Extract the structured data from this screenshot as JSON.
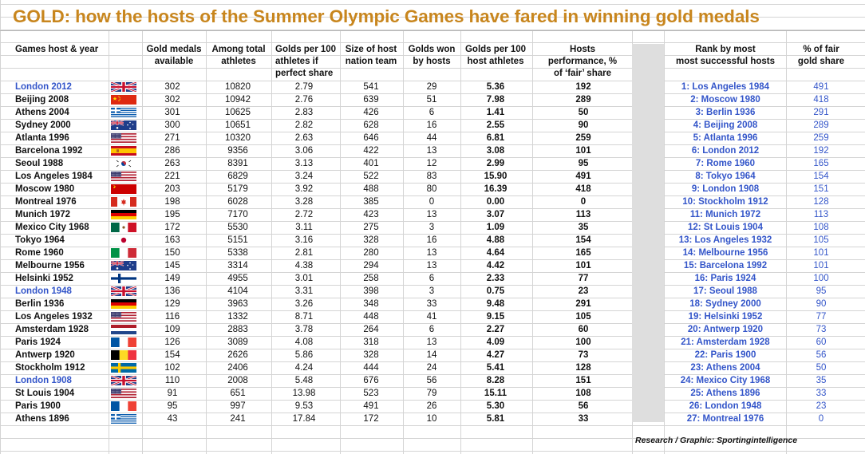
{
  "title": "GOLD: how the hosts of the Summer Olympic Games have fared in winning gold medals",
  "headers": {
    "host": [
      "Games host & year"
    ],
    "gold": [
      "Gold medals",
      "available"
    ],
    "athletes": [
      "Among total",
      "athletes"
    ],
    "fair": [
      "Golds per 100",
      "athletes if",
      "perfect share"
    ],
    "team": [
      "Size of host",
      "nation team"
    ],
    "won": [
      "Golds won",
      "by hosts"
    ],
    "per100": [
      "Golds per 100",
      "host athletes"
    ],
    "perf": [
      "Hosts",
      "performance, %",
      "of ‘fair’ share"
    ],
    "rank": [
      "Rank by most",
      "most successful hosts"
    ],
    "pct": [
      "% of fair",
      "gold share"
    ]
  },
  "rows": [
    {
      "host": "London 2012",
      "blue": true,
      "flag": "uk",
      "gold": "302",
      "athletes": "10820",
      "fair": "2.79",
      "team": "541",
      "won": "29",
      "per100": "5.36",
      "perf": "192"
    },
    {
      "host": "Beijing 2008",
      "blue": false,
      "flag": "china",
      "gold": "302",
      "athletes": "10942",
      "fair": "2.76",
      "team": "639",
      "won": "51",
      "per100": "7.98",
      "perf": "289"
    },
    {
      "host": "Athens 2004",
      "blue": false,
      "flag": "greece",
      "gold": "301",
      "athletes": "10625",
      "fair": "2.83",
      "team": "426",
      "won": "6",
      "per100": "1.41",
      "perf": "50"
    },
    {
      "host": "Sydney 2000",
      "blue": false,
      "flag": "australia",
      "gold": "300",
      "athletes": "10651",
      "fair": "2.82",
      "team": "628",
      "won": "16",
      "per100": "2.55",
      "perf": "90"
    },
    {
      "host": "Atlanta 1996",
      "blue": false,
      "flag": "usa",
      "gold": "271",
      "athletes": "10320",
      "fair": "2.63",
      "team": "646",
      "won": "44",
      "per100": "6.81",
      "perf": "259"
    },
    {
      "host": "Barcelona 1992",
      "blue": false,
      "flag": "spain",
      "gold": "286",
      "athletes": "9356",
      "fair": "3.06",
      "team": "422",
      "won": "13",
      "per100": "3.08",
      "perf": "101"
    },
    {
      "host": "Seoul 1988",
      "blue": false,
      "flag": "korea",
      "gold": "263",
      "athletes": "8391",
      "fair": "3.13",
      "team": "401",
      "won": "12",
      "per100": "2.99",
      "perf": "95"
    },
    {
      "host": "Los Angeles 1984",
      "blue": false,
      "flag": "usa",
      "gold": "221",
      "athletes": "6829",
      "fair": "3.24",
      "team": "522",
      "won": "83",
      "per100": "15.90",
      "perf": "491"
    },
    {
      "host": "Moscow 1980",
      "blue": false,
      "flag": "ussr",
      "gold": "203",
      "athletes": "5179",
      "fair": "3.92",
      "team": "488",
      "won": "80",
      "per100": "16.39",
      "perf": "418"
    },
    {
      "host": "Montreal 1976",
      "blue": false,
      "flag": "canada",
      "gold": "198",
      "athletes": "6028",
      "fair": "3.28",
      "team": "385",
      "won": "0",
      "per100": "0.00",
      "perf": "0"
    },
    {
      "host": "Munich 1972",
      "blue": false,
      "flag": "germany",
      "gold": "195",
      "athletes": "7170",
      "fair": "2.72",
      "team": "423",
      "won": "13",
      "per100": "3.07",
      "perf": "113"
    },
    {
      "host": "Mexico City 1968",
      "blue": false,
      "flag": "mexico",
      "gold": "172",
      "athletes": "5530",
      "fair": "3.11",
      "team": "275",
      "won": "3",
      "per100": "1.09",
      "perf": "35"
    },
    {
      "host": "Tokyo 1964",
      "blue": false,
      "flag": "japan",
      "gold": "163",
      "athletes": "5151",
      "fair": "3.16",
      "team": "328",
      "won": "16",
      "per100": "4.88",
      "perf": "154"
    },
    {
      "host": "Rome 1960",
      "blue": false,
      "flag": "italy",
      "gold": "150",
      "athletes": "5338",
      "fair": "2.81",
      "team": "280",
      "won": "13",
      "per100": "4.64",
      "perf": "165"
    },
    {
      "host": "Melbourne 1956",
      "blue": false,
      "flag": "australia",
      "gold": "145",
      "athletes": "3314",
      "fair": "4.38",
      "team": "294",
      "won": "13",
      "per100": "4.42",
      "perf": "101"
    },
    {
      "host": "Helsinki 1952",
      "blue": false,
      "flag": "finland",
      "gold": "149",
      "athletes": "4955",
      "fair": "3.01",
      "team": "258",
      "won": "6",
      "per100": "2.33",
      "perf": "77"
    },
    {
      "host": "London 1948",
      "blue": true,
      "flag": "uk",
      "gold": "136",
      "athletes": "4104",
      "fair": "3.31",
      "team": "398",
      "won": "3",
      "per100": "0.75",
      "perf": "23"
    },
    {
      "host": "Berlin 1936",
      "blue": false,
      "flag": "germany",
      "gold": "129",
      "athletes": "3963",
      "fair": "3.26",
      "team": "348",
      "won": "33",
      "per100": "9.48",
      "perf": "291"
    },
    {
      "host": "Los Angeles 1932",
      "blue": false,
      "flag": "usa",
      "gold": "116",
      "athletes": "1332",
      "fair": "8.71",
      "team": "448",
      "won": "41",
      "per100": "9.15",
      "perf": "105"
    },
    {
      "host": "Amsterdam 1928",
      "blue": false,
      "flag": "netherlands",
      "gold": "109",
      "athletes": "2883",
      "fair": "3.78",
      "team": "264",
      "won": "6",
      "per100": "2.27",
      "perf": "60"
    },
    {
      "host": "Paris 1924",
      "blue": false,
      "flag": "france",
      "gold": "126",
      "athletes": "3089",
      "fair": "4.08",
      "team": "318",
      "won": "13",
      "per100": "4.09",
      "perf": "100"
    },
    {
      "host": "Antwerp 1920",
      "blue": false,
      "flag": "belgium",
      "gold": "154",
      "athletes": "2626",
      "fair": "5.86",
      "team": "328",
      "won": "14",
      "per100": "4.27",
      "perf": "73"
    },
    {
      "host": "Stockholm 1912",
      "blue": false,
      "flag": "sweden",
      "gold": "102",
      "athletes": "2406",
      "fair": "4.24",
      "team": "444",
      "won": "24",
      "per100": "5.41",
      "perf": "128"
    },
    {
      "host": "London 1908",
      "blue": true,
      "flag": "uk",
      "gold": "110",
      "athletes": "2008",
      "fair": "5.48",
      "team": "676",
      "won": "56",
      "per100": "8.28",
      "perf": "151"
    },
    {
      "host": "St Louis 1904",
      "blue": false,
      "flag": "usa",
      "gold": "91",
      "athletes": "651",
      "fair": "13.98",
      "team": "523",
      "won": "79",
      "per100": "15.11",
      "perf": "108"
    },
    {
      "host": "Paris 1900",
      "blue": false,
      "flag": "france",
      "gold": "95",
      "athletes": "997",
      "fair": "9.53",
      "team": "491",
      "won": "26",
      "per100": "5.30",
      "perf": "56"
    },
    {
      "host": "Athens 1896",
      "blue": false,
      "flag": "greece",
      "gold": "43",
      "athletes": "241",
      "fair": "17.84",
      "team": "172",
      "won": "10",
      "per100": "5.81",
      "perf": "33"
    }
  ],
  "ranking": [
    {
      "label": "1: Los Angeles 1984",
      "pct": "491"
    },
    {
      "label": "2: Moscow 1980",
      "pct": "418"
    },
    {
      "label": "3: Berlin 1936",
      "pct": "291"
    },
    {
      "label": "4: Beijing 2008",
      "pct": "289"
    },
    {
      "label": "5: Atlanta 1996",
      "pct": "259"
    },
    {
      "label": "6: London 2012",
      "pct": "192"
    },
    {
      "label": "7: Rome 1960",
      "pct": "165"
    },
    {
      "label": "8: Tokyo 1964",
      "pct": "154"
    },
    {
      "label": "9: London 1908",
      "pct": "151"
    },
    {
      "label": "10: Stockholm 1912",
      "pct": "128"
    },
    {
      "label": "11: Munich 1972",
      "pct": "113"
    },
    {
      "label": "12: St Louis 1904",
      "pct": "108"
    },
    {
      "label": "13: Los Angeles 1932",
      "pct": "105"
    },
    {
      "label": "14: Melbourne 1956",
      "pct": "101"
    },
    {
      "label": "15: Barcelona 1992",
      "pct": "101"
    },
    {
      "label": "16: Paris 1924",
      "pct": "100"
    },
    {
      "label": "17: Seoul 1988",
      "pct": "95"
    },
    {
      "label": "18: Sydney 2000",
      "pct": "90"
    },
    {
      "label": "19: Helsinki 1952",
      "pct": "77"
    },
    {
      "label": "20: Antwerp 1920",
      "pct": "73"
    },
    {
      "label": "21: Amsterdam 1928",
      "pct": "60"
    },
    {
      "label": "22: Paris 1900",
      "pct": "56"
    },
    {
      "label": "23: Athens 2004",
      "pct": "50"
    },
    {
      "label": "24: Mexico City 1968",
      "pct": "35"
    },
    {
      "label": "25: Athens 1896",
      "pct": "33"
    },
    {
      "label": "26: London 1948",
      "pct": "23"
    },
    {
      "label": "27: Montreal 1976",
      "pct": "0"
    }
  ],
  "credit": "Research / Graphic: Sportingintelligence",
  "colors": {
    "title": "#c8861e",
    "link_blue": "#3355c9",
    "shade": "#dedede"
  }
}
